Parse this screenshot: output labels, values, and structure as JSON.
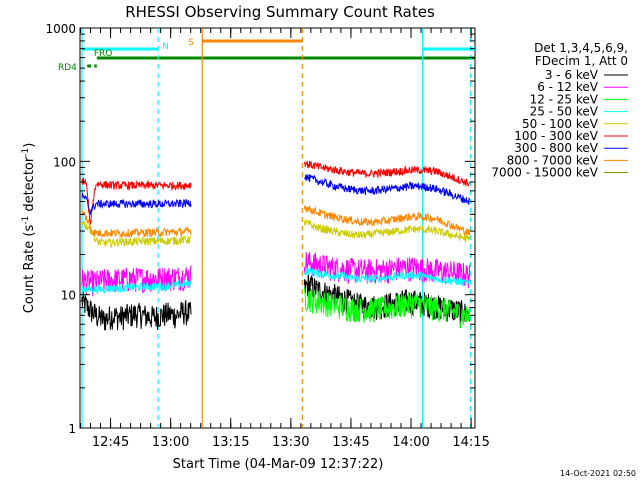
{
  "chart_data": {
    "type": "line",
    "title": "RHESSI Observing Summary Count Rates",
    "xlabel": "Start Time (04-Mar-09 12:37:22)",
    "ylabel_main": "Count Rate (s",
    "ylabel_sup1": "-1",
    "ylabel_mid": " detector",
    "ylabel_sup2": "-1",
    "ylabel_end": ")",
    "yscale": "log",
    "ylim": [
      1,
      1000
    ],
    "xlim_minutes": [
      0,
      98.6
    ],
    "x_ticks": [
      {
        "min": 7.63,
        "label": "12:45"
      },
      {
        "min": 22.63,
        "label": "13:00"
      },
      {
        "min": 37.63,
        "label": "13:15"
      },
      {
        "min": 52.63,
        "label": "13:30"
      },
      {
        "min": 67.63,
        "label": "13:45"
      },
      {
        "min": 82.63,
        "label": "14:00"
      },
      {
        "min": 97.63,
        "label": "14:15"
      }
    ],
    "y_ticks": [
      {
        "value": 1,
        "label": "1"
      },
      {
        "value": 10,
        "label": "10"
      },
      {
        "value": 100,
        "label": "100"
      },
      {
        "value": 1000,
        "label": "1000"
      }
    ],
    "legend": {
      "header1": "Det 1,3,4,5,6,9,",
      "header2": "FDecim 1, Att 0",
      "placement": "right"
    },
    "series": [
      {
        "name": "3 - 6 keV",
        "color": "#000000",
        "segments": [
          {
            "x": [
              0.5,
              2,
              4,
              6,
              8,
              10,
              12,
              14,
              16,
              18,
              20,
              22,
              24,
              26,
              27.8
            ],
            "y": [
              9,
              8,
              7,
              6.5,
              7,
              6.8,
              7,
              7.2,
              7,
              6.8,
              7,
              7.2,
              7,
              7.5,
              7.2
            ]
          },
          {
            "x": [
              56,
              57,
              59,
              61,
              63,
              65,
              67,
              69,
              71,
              73,
              75,
              77,
              79,
              81,
              83,
              85,
              87,
              89,
              91,
              93,
              95,
              97.3
            ],
            "y": [
              11,
              12,
              11,
              10.5,
              10,
              9.5,
              9,
              8.5,
              8.3,
              8.2,
              8.3,
              8.5,
              8.8,
              9,
              9,
              8.8,
              8.5,
              8.2,
              8,
              7.8,
              7.5,
              7
            ]
          }
        ]
      },
      {
        "name": "6 - 12 keV",
        "color": "#ff00ff",
        "segments": [
          {
            "x": [
              0.5,
              2,
              4,
              6,
              8,
              10,
              12,
              14,
              16,
              18,
              20,
              22,
              24,
              26,
              27.8
            ],
            "y": [
              13,
              12.5,
              12.5,
              12.8,
              13,
              13,
              13.2,
              13.2,
              13.3,
              13.3,
              13.4,
              13.5,
              13.5,
              13.8,
              14
            ]
          },
          {
            "x": [
              56,
              57,
              59,
              61,
              63,
              65,
              67,
              69,
              71,
              73,
              75,
              77,
              79,
              81,
              83,
              85,
              87,
              89,
              91,
              93,
              95,
              97.3
            ],
            "y": [
              18,
              17.5,
              17,
              16.5,
              16,
              15.8,
              15.5,
              15.3,
              15.2,
              15.2,
              15.3,
              15.5,
              15.8,
              16,
              16,
              15.8,
              15.5,
              15.2,
              15,
              14.8,
              14.5,
              14
            ]
          }
        ]
      },
      {
        "name": "12 - 25 keV",
        "color": "#00ff00",
        "segments": [
          {
            "x": [
              56,
              57,
              59,
              61,
              63,
              65,
              67,
              69,
              71,
              73,
              75,
              77,
              79,
              81,
              83,
              85,
              87,
              89,
              91,
              93,
              95,
              97.3
            ],
            "y": [
              9.5,
              9.5,
              9,
              8.8,
              8.5,
              8.3,
              8,
              7.9,
              7.8,
              7.8,
              7.9,
              8,
              8.2,
              8.5,
              8.6,
              8.5,
              8.2,
              8,
              7.8,
              7.5,
              7.2,
              6.8
            ]
          }
        ]
      },
      {
        "name": "25 - 50 keV",
        "color": "#00ffff",
        "segments": [
          {
            "x": [
              0.5,
              2,
              4,
              6,
              8,
              10,
              12,
              14,
              16,
              18,
              20,
              22,
              24,
              26,
              27.8
            ],
            "y": [
              11,
              11,
              11,
              11,
              11.2,
              11.2,
              11.3,
              11.3,
              11.5,
              11.5,
              11.5,
              11.7,
              11.8,
              12,
              12
            ]
          },
          {
            "x": [
              56,
              57,
              59,
              61,
              63,
              65,
              67,
              69,
              71,
              73,
              75,
              77,
              79,
              81,
              83,
              85,
              87,
              89,
              91,
              93,
              95,
              97.3
            ],
            "y": [
              15,
              15,
              14.5,
              14.2,
              14,
              13.8,
              13.5,
              13.3,
              13.2,
              13.2,
              13.3,
              13.5,
              13.8,
              14,
              14,
              13.8,
              13.5,
              13.2,
              13,
              12.8,
              12.5,
              12
            ]
          }
        ]
      },
      {
        "name": "50 - 100 keV",
        "color": "#cccc00",
        "segments": [
          {
            "x": [
              0.5,
              1.5,
              3,
              4,
              6,
              8,
              10,
              12,
              14,
              16,
              18,
              20,
              22,
              24,
              26,
              27.8
            ],
            "y": [
              36,
              33,
              30,
              25,
              24.5,
              24.5,
              25,
              25,
              25,
              25.2,
              25.2,
              25.3,
              25.3,
              25.5,
              25.8,
              26
            ]
          },
          {
            "x": [
              56,
              57,
              59,
              61,
              63,
              65,
              67,
              69,
              71,
              73,
              75,
              77,
              79,
              81,
              83,
              85,
              87,
              89,
              91,
              93,
              95,
              97.3
            ],
            "y": [
              35,
              34,
              32,
              31,
              30,
              29,
              28.5,
              28,
              28,
              28.5,
              29,
              29.5,
              30,
              30.5,
              31,
              31,
              30.5,
              30,
              29,
              28,
              27,
              26
            ]
          }
        ]
      },
      {
        "name": "100 - 300 keV",
        "color": "#ff0000",
        "segments": [
          {
            "x": [
              0.5,
              1.5,
              2.5,
              4,
              6,
              8,
              10,
              12,
              14,
              16,
              18,
              20,
              22,
              24,
              26,
              27.8
            ],
            "y": [
              72,
              70,
              32,
              68,
              67,
              66,
              66,
              66,
              66,
              66,
              66,
              66,
              66,
              66,
              66,
              67
            ]
          },
          {
            "x": [
              56,
              57,
              59,
              61,
              63,
              65,
              67,
              69,
              71,
              73,
              75,
              77,
              79,
              81,
              83,
              85,
              87,
              89,
              91,
              93,
              95,
              97.3
            ],
            "y": [
              98,
              95,
              92,
              89,
              87,
              85,
              83,
              82,
              81,
              81,
              82,
              83,
              84,
              85,
              86,
              86,
              85,
              84,
              80,
              76,
              72,
              68
            ]
          }
        ]
      },
      {
        "name": "300 - 800 keV",
        "color": "#0000ff",
        "segments": [
          {
            "x": [
              0.5,
              1.5,
              2.5,
              4,
              6,
              8,
              10,
              12,
              14,
              16,
              18,
              20,
              22,
              24,
              26,
              27.8
            ],
            "y": [
              55,
              52,
              42,
              48,
              48,
              48,
              48,
              48,
              48,
              48,
              48,
              48,
              48,
              48,
              48.5,
              49
            ]
          },
          {
            "x": [
              56,
              57,
              59,
              61,
              63,
              65,
              67,
              69,
              71,
              73,
              75,
              77,
              79,
              81,
              83,
              85,
              87,
              89,
              91,
              93,
              95,
              97.3
            ],
            "y": [
              78,
              75,
              72,
              69,
              66,
              64,
              62,
              61,
              60,
              60,
              61,
              62,
              63,
              64,
              65,
              65,
              64,
              62,
              59,
              56,
              53,
              50
            ]
          }
        ]
      },
      {
        "name": "800 - 7000 keV",
        "color": "#ff8800",
        "segments": [
          {
            "x": [
              0.5,
              1.5,
              3,
              4,
              6,
              8,
              10,
              12,
              14,
              16,
              18,
              20,
              22,
              24,
              26,
              27.8
            ],
            "y": [
              42,
              38,
              30,
              29,
              29,
              29,
              29,
              29,
              29.2,
              29.2,
              29.3,
              29.3,
              29.5,
              29.5,
              29.8,
              30
            ]
          },
          {
            "x": [
              56,
              57,
              59,
              61,
              63,
              65,
              67,
              69,
              71,
              73,
              75,
              77,
              79,
              81,
              83,
              85,
              87,
              89,
              91,
              93,
              95,
              97.3
            ],
            "y": [
              46,
              44,
              42,
              40,
              38.5,
              37.5,
              36.5,
              35.5,
              35,
              35,
              35.5,
              36,
              37,
              38,
              38.5,
              38.5,
              38,
              37,
              35,
              33,
              31,
              29
            ]
          }
        ]
      },
      {
        "name": "7000 - 15000 keV",
        "color": "#888800",
        "segments": []
      }
    ],
    "status_flags": [
      {
        "label": "N",
        "color": "#00ffff",
        "ranges": [
          [
            0.5,
            19.5
          ],
          [
            85.5,
            98.6
          ]
        ]
      },
      {
        "label": "S",
        "color": "#ff8800",
        "ranges": [
          [
            30.5,
            55.5
          ]
        ]
      },
      {
        "label": "FRO",
        "color": "#008800",
        "ranges": [
          [
            4.2,
            98.6
          ]
        ]
      },
      {
        "label": "RD4",
        "color": "#008800",
        "ranges": [
          [
            1.8,
            4.2
          ]
        ]
      }
    ],
    "vlines": [
      {
        "x": 0.5,
        "color": "#00ffff",
        "style": "solid"
      },
      {
        "x": 19.5,
        "color": "#00ffff",
        "style": "dashed"
      },
      {
        "x": 85.5,
        "color": "#00ffff",
        "style": "solid"
      },
      {
        "x": 97.5,
        "color": "#00ffff",
        "style": "dashed"
      },
      {
        "x": 30.5,
        "color": "#ff8800",
        "style": "solid"
      },
      {
        "x": 55.5,
        "color": "#ff8800",
        "style": "dashed"
      }
    ]
  },
  "footer": {
    "timestamp": "14-Oct-2021 02:50"
  }
}
